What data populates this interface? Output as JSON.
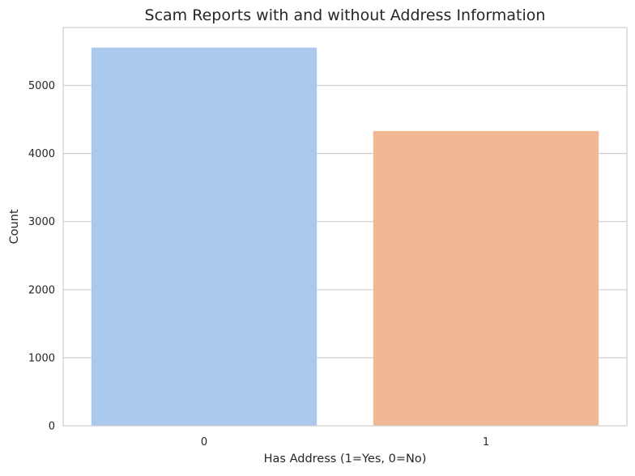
{
  "chart_data": {
    "type": "bar",
    "title": "Scam Reports with and without Address Information",
    "xlabel": "Has Address (1=Yes, 0=No)",
    "ylabel": "Count",
    "categories": [
      "0",
      "1"
    ],
    "values": [
      5555,
      4330
    ],
    "ylim": [
      0,
      5850
    ],
    "yticks": [
      0,
      1000,
      2000,
      3000,
      4000,
      5000
    ],
    "grid": "y-major",
    "legend": "none",
    "colors": [
      "#abc9ed",
      "#f0b893"
    ]
  },
  "style": {
    "grid_color": "#cfcfcf",
    "axis_color": "#cfcfcf",
    "text_color": "#262626",
    "background": "#ffffff"
  }
}
